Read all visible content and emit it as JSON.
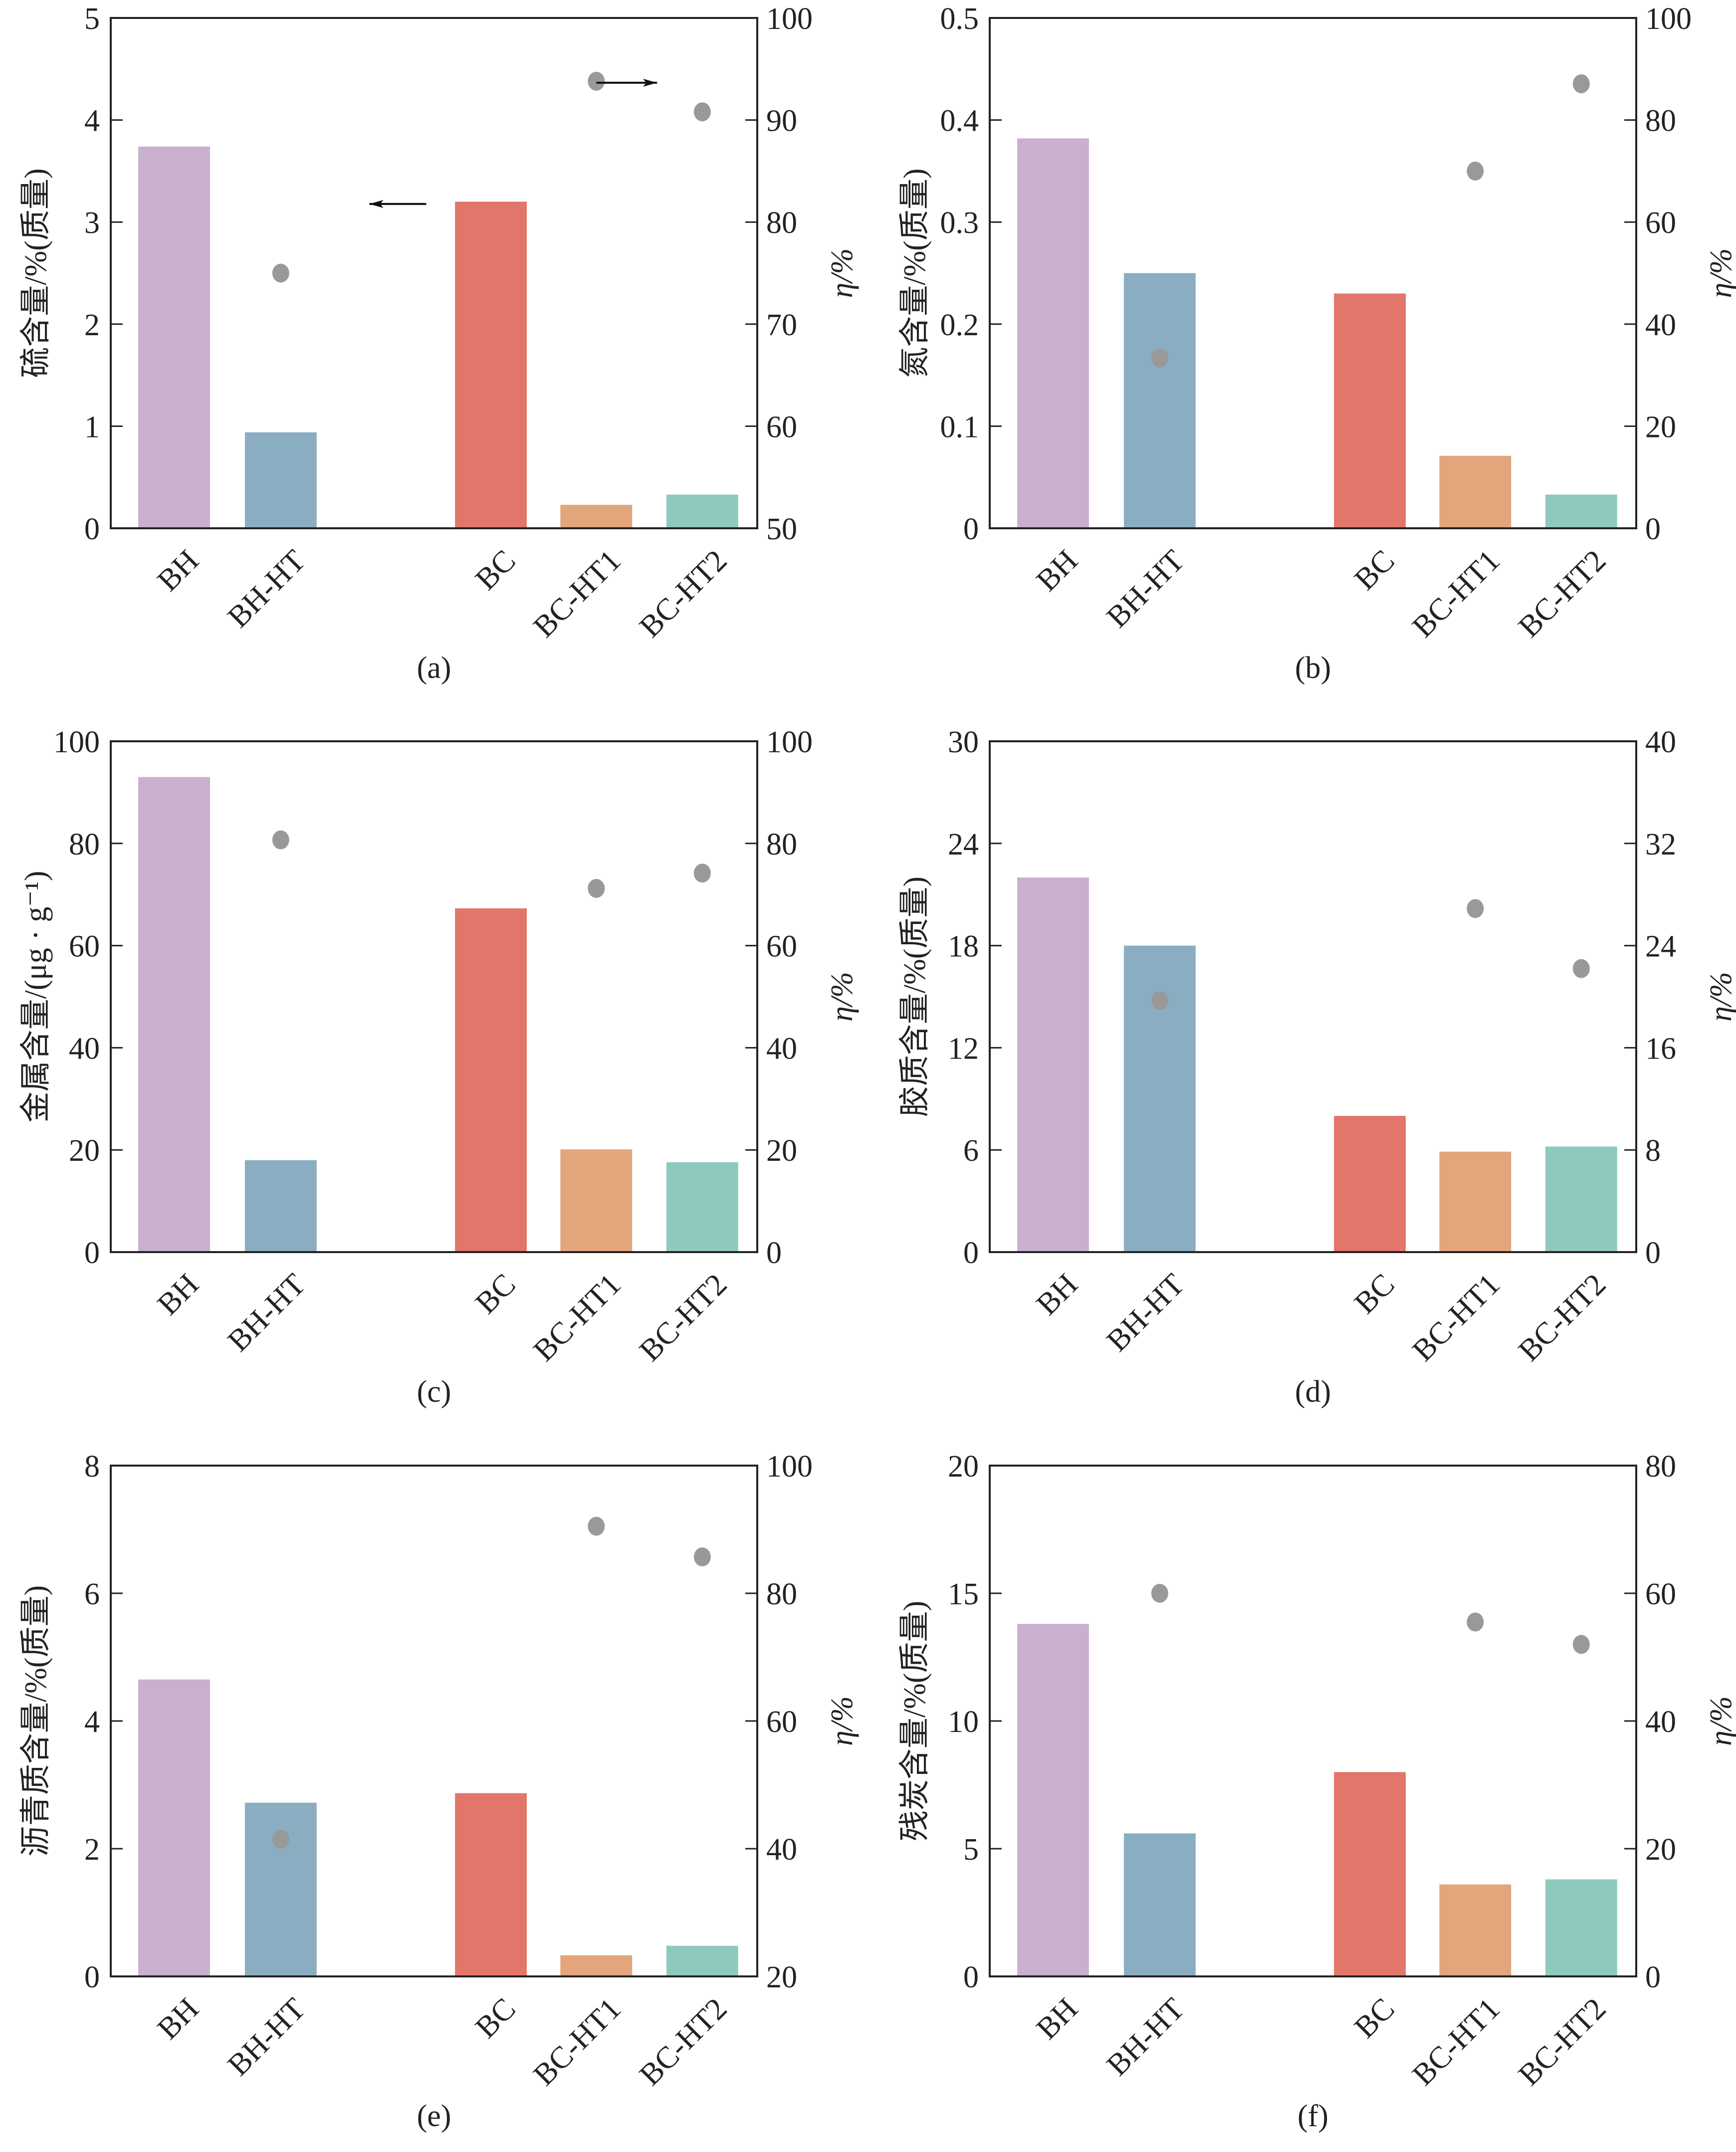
{
  "chart_data": [
    {
      "type": "bar",
      "panel": "(a)",
      "categories": [
        "BH",
        "BH-HT",
        "BC",
        "BC-HT1",
        "BC-HT2"
      ],
      "bar_colors": [
        "#c9b0cf",
        "#8badc2",
        "#e2766a",
        "#e3a57b",
        "#8fc9bd"
      ],
      "values": [
        3.74,
        0.94,
        3.2,
        0.23,
        0.33
      ],
      "ylabel": "硫含量/%(质量)",
      "ylim": [
        0,
        5
      ],
      "yticks": [
        0,
        1,
        2,
        3,
        4,
        5
      ],
      "secondary": {
        "name": "η",
        "ylabel": "η/%",
        "ylim": [
          50,
          100
        ],
        "yticks": [
          50,
          60,
          70,
          80,
          90,
          100
        ],
        "values": [
          null,
          75.0,
          null,
          93.8,
          90.8
        ],
        "marker_color": "#999999"
      },
      "annotations": [
        {
          "type": "arrow",
          "direction": "left",
          "meaning": "bars read on left axis"
        },
        {
          "type": "arrow",
          "direction": "right",
          "meaning": "points read on right axis"
        }
      ]
    },
    {
      "type": "bar",
      "panel": "(b)",
      "categories": [
        "BH",
        "BH-HT",
        "BC",
        "BC-HT1",
        "BC-HT2"
      ],
      "bar_colors": [
        "#c9b0cf",
        "#8badc2",
        "#e2766a",
        "#e3a57b",
        "#8fc9bd"
      ],
      "values": [
        0.382,
        0.25,
        0.23,
        0.071,
        0.033
      ],
      "ylabel": "氮含量/%(质量)",
      "ylim": [
        0,
        0.5
      ],
      "yticks": [
        0,
        0.1,
        0.2,
        0.3,
        0.4,
        0.5
      ],
      "secondary": {
        "name": "η",
        "ylabel": "η/%",
        "ylim": [
          0,
          100
        ],
        "yticks": [
          0,
          20,
          40,
          60,
          80,
          100
        ],
        "values": [
          null,
          33.4,
          null,
          70.0,
          87.1
        ],
        "marker_color": "#999999"
      }
    },
    {
      "type": "bar",
      "panel": "(c)",
      "categories": [
        "BH",
        "BH-HT",
        "BC",
        "BC-HT1",
        "BC-HT2"
      ],
      "bar_colors": [
        "#c9b0cf",
        "#8badc2",
        "#e2766a",
        "#e3a57b",
        "#8fc9bd"
      ],
      "values": [
        93.0,
        18.0,
        67.3,
        20.1,
        17.6
      ],
      "ylabel": "金属含量/(μg · g⁻¹)",
      "ylim": [
        0,
        100
      ],
      "yticks": [
        0,
        20,
        40,
        60,
        80,
        100
      ],
      "secondary": {
        "name": "η",
        "ylabel": "η/%",
        "ylim": [
          0,
          100
        ],
        "yticks": [
          0,
          20,
          40,
          60,
          80,
          100
        ],
        "values": [
          null,
          80.7,
          null,
          71.2,
          74.2
        ],
        "marker_color": "#999999"
      }
    },
    {
      "type": "bar",
      "panel": "(d)",
      "categories": [
        "BH",
        "BH-HT",
        "BC",
        "BC-HT1",
        "BC-HT2"
      ],
      "bar_colors": [
        "#c9b0cf",
        "#8badc2",
        "#e2766a",
        "#e3a57b",
        "#8fc9bd"
      ],
      "values": [
        22.0,
        18.0,
        8.0,
        5.9,
        6.2
      ],
      "ylabel": "胶质含量/%(质量)",
      "ylim": [
        0,
        30
      ],
      "yticks": [
        0,
        6,
        12,
        18,
        24,
        30
      ],
      "secondary": {
        "name": "η",
        "ylabel": "η/%",
        "ylim": [
          0,
          40
        ],
        "yticks": [
          0,
          8,
          16,
          24,
          32,
          40
        ],
        "values": [
          null,
          19.7,
          null,
          26.9,
          22.2
        ],
        "marker_color": "#999999"
      }
    },
    {
      "type": "bar",
      "panel": "(e)",
      "categories": [
        "BH",
        "BH-HT",
        "BC",
        "BC-HT1",
        "BC-HT2"
      ],
      "bar_colors": [
        "#c9b0cf",
        "#8badc2",
        "#e2766a",
        "#e3a57b",
        "#8fc9bd"
      ],
      "values": [
        4.65,
        2.72,
        2.87,
        0.33,
        0.48
      ],
      "ylabel": "沥青质含量/%(质量)",
      "ylim": [
        0,
        8
      ],
      "yticks": [
        0,
        2,
        4,
        6,
        8
      ],
      "secondary": {
        "name": "η",
        "ylabel": "η/%",
        "ylim": [
          20,
          100
        ],
        "yticks": [
          20,
          40,
          60,
          80,
          100
        ],
        "values": [
          null,
          41.5,
          null,
          90.5,
          85.7
        ],
        "marker_color": "#999999"
      }
    },
    {
      "type": "bar",
      "panel": "(f)",
      "categories": [
        "BH",
        "BH-HT",
        "BC",
        "BC-HT1",
        "BC-HT2"
      ],
      "bar_colors": [
        "#c9b0cf",
        "#8badc2",
        "#e2766a",
        "#e3a57b",
        "#8fc9bd"
      ],
      "values": [
        13.8,
        5.6,
        8.0,
        3.6,
        3.8
      ],
      "ylabel": "残炭含量/%(质量)",
      "ylim": [
        0,
        20
      ],
      "yticks": [
        0,
        5,
        10,
        15,
        20
      ],
      "secondary": {
        "name": "η",
        "ylabel": "η/%",
        "ylim": [
          0,
          80
        ],
        "yticks": [
          0,
          20,
          40,
          60,
          80
        ],
        "values": [
          null,
          60.0,
          null,
          55.5,
          52.0
        ],
        "marker_color": "#999999"
      }
    }
  ]
}
